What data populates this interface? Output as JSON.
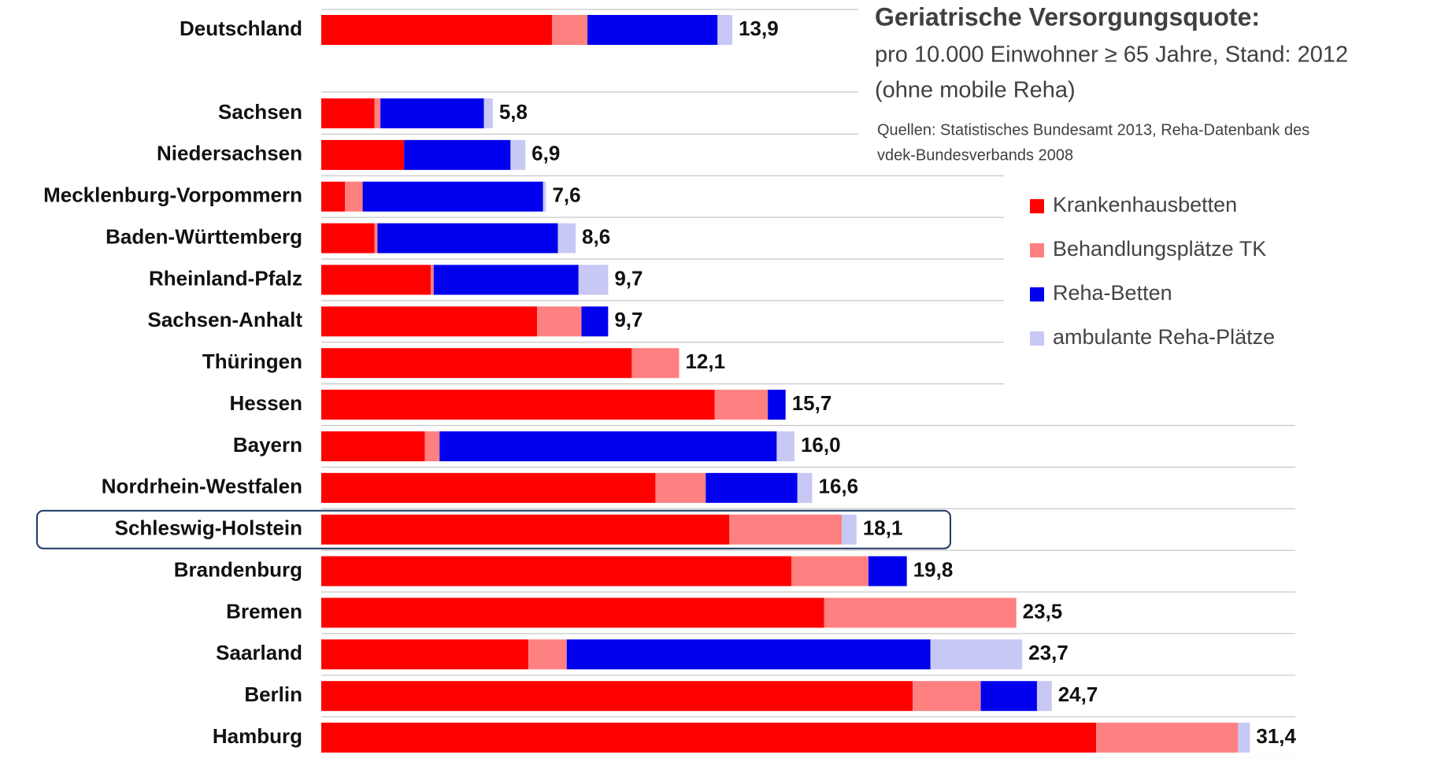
{
  "chart_data": {
    "type": "bar",
    "orientation": "horizontal",
    "stacked": true,
    "title": "Geriatrische Versorgungsquote:",
    "subtitle": [
      "pro 10.000 Einwohner  ≥ 65 Jahre, Stand: 2012",
      "(ohne mobile Reha)"
    ],
    "source": [
      "Quellen: Statistisches Bundesamt 2013, Reha-Datenbank des",
      "vdek-Bundesverbands 2008"
    ],
    "categories": [
      "Deutschland",
      "Sachsen",
      "Niedersachsen",
      "Mecklenburg-Vorpommern",
      "Baden-Württemberg",
      "Rheinland-Pfalz",
      "Sachsen-Anhalt",
      "Thüringen",
      "Hessen",
      "Bayern",
      "Nordrhein-Westfalen",
      "Schleswig-Holstein",
      "Brandenburg",
      "Bremen",
      "Saarland",
      "Berlin",
      "Hamburg"
    ],
    "series": [
      {
        "name": "Krankenhausbetten",
        "color": "#ff0000",
        "values": [
          7.8,
          1.8,
          2.8,
          0.8,
          1.8,
          3.7,
          7.3,
          10.5,
          13.3,
          3.5,
          11.3,
          13.8,
          15.9,
          17.0,
          7.0,
          20.0,
          26.2
        ]
      },
      {
        "name": "Behandlungsplätze TK",
        "color": "#ff8080",
        "values": [
          1.2,
          0.2,
          0,
          0.6,
          0.1,
          0.1,
          1.5,
          1.6,
          1.8,
          0.5,
          1.7,
          3.8,
          2.6,
          6.5,
          1.3,
          2.3,
          4.8
        ]
      },
      {
        "name": "Reha-Betten",
        "color": "#0000ee",
        "values": [
          4.4,
          3.5,
          3.6,
          6.1,
          6.1,
          4.9,
          0.9,
          0,
          0.6,
          11.4,
          3.1,
          0,
          1.3,
          0,
          12.3,
          1.9,
          0
        ]
      },
      {
        "name": "ambulante Reha-Plätze",
        "color": "#c8c8f5",
        "values": [
          0.5,
          0.3,
          0.5,
          0.1,
          0.6,
          1.0,
          0,
          0,
          0,
          0.6,
          0.5,
          0.5,
          0,
          0,
          3.1,
          0.5,
          0.4
        ]
      }
    ],
    "totals": [
      13.9,
      5.8,
      6.9,
      7.6,
      8.6,
      9.7,
      9.7,
      12.1,
      15.7,
      16.0,
      16.6,
      18.1,
      19.8,
      23.5,
      23.7,
      24.7,
      31.4
    ],
    "value_labels": [
      "13,9",
      "5,8",
      "6,9",
      "7,6",
      "8,6",
      "9,7",
      "9,7",
      "12,1",
      "15,7",
      "16,0",
      "16,6",
      "18,1",
      "19,8",
      "23,5",
      "23,7",
      "24,7",
      "31,4"
    ],
    "highlight": "Schleswig-Holstein",
    "legend": "right"
  }
}
